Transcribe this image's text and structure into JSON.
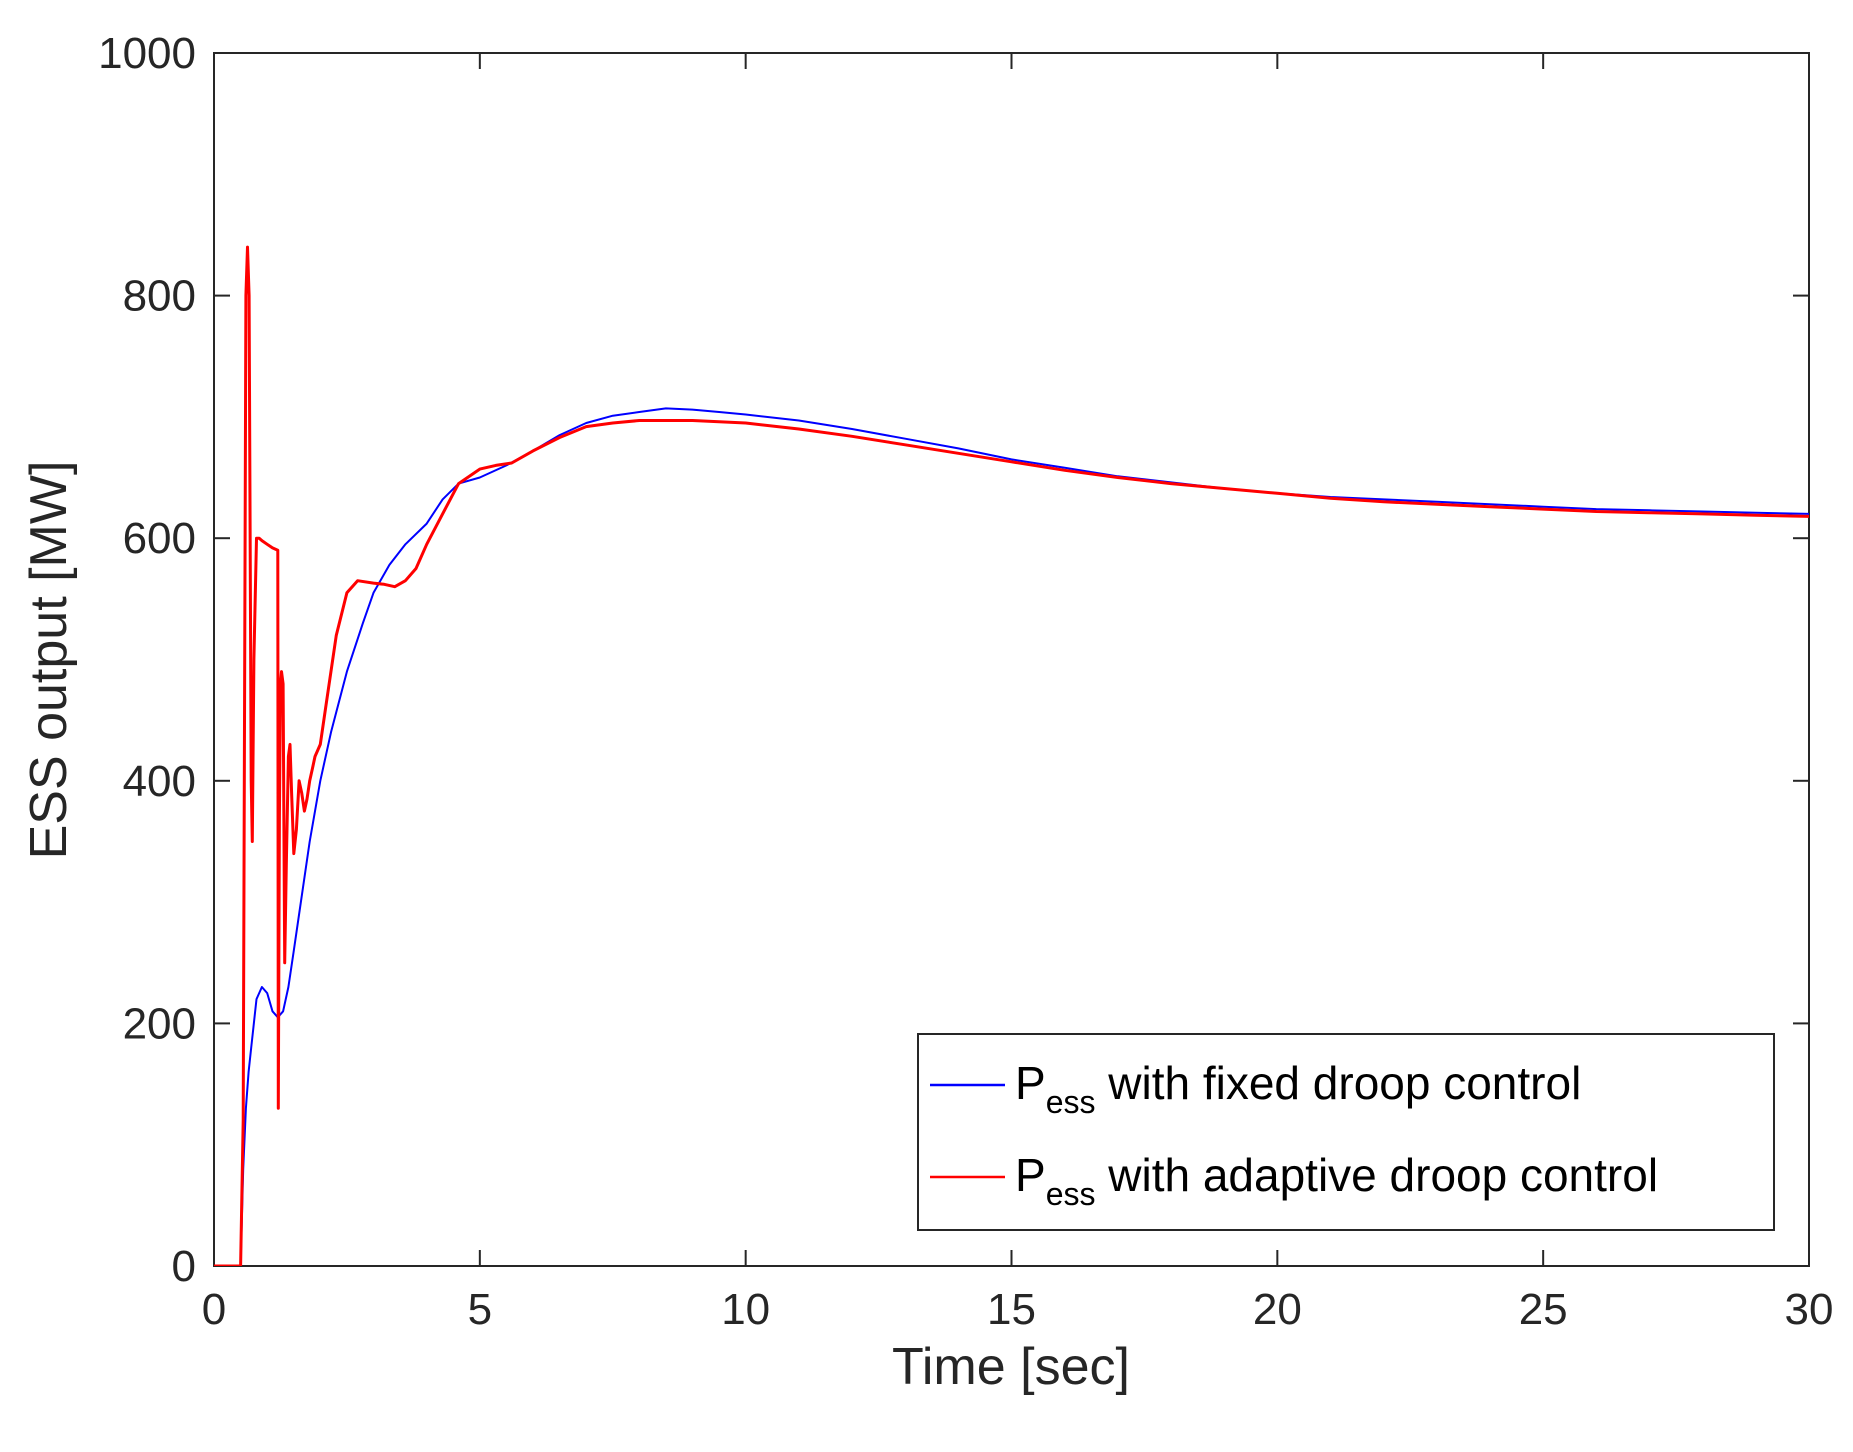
{
  "chart_data": {
    "type": "line",
    "title": "",
    "xlabel": "Time [sec]",
    "ylabel": "ESS output [MW]",
    "xlim": [
      0,
      30
    ],
    "ylim": [
      0,
      1000
    ],
    "xticks": [
      0,
      5,
      10,
      15,
      20,
      25,
      30
    ],
    "yticks": [
      0,
      200,
      400,
      600,
      800,
      1000
    ],
    "xtick_labels": [
      "0",
      "5",
      "10",
      "15",
      "20",
      "25",
      "30"
    ],
    "ytick_labels": [
      "0",
      "200",
      "400",
      "600",
      "800",
      "1000"
    ],
    "grid": false,
    "legend_position": "bottom-right",
    "series": [
      {
        "name": "P_ess with fixed droop control",
        "legend_main": "P",
        "legend_sub": "ess",
        "legend_rest": " with fixed droop control",
        "color": "#0000ff",
        "x": [
          0,
          0.5,
          0.55,
          0.6,
          0.65,
          0.7,
          0.8,
          0.9,
          1.0,
          1.1,
          1.2,
          1.3,
          1.4,
          1.5,
          1.6,
          1.8,
          2.0,
          2.2,
          2.5,
          2.8,
          3.0,
          3.3,
          3.6,
          4.0,
          4.3,
          4.6,
          5.0,
          5.5,
          6.0,
          6.5,
          7.0,
          7.5,
          8.0,
          8.5,
          9.0,
          9.5,
          10.0,
          11.0,
          12.0,
          13.0,
          14.0,
          15.0,
          16.0,
          17.0,
          18.0,
          19.0,
          20.0,
          21.0,
          22.0,
          23.0,
          24.0,
          25.0,
          26.0,
          27.0,
          28.0,
          29.0,
          30.0
        ],
        "y": [
          0,
          0,
          80,
          130,
          160,
          180,
          220,
          230,
          225,
          210,
          205,
          210,
          230,
          260,
          290,
          350,
          400,
          440,
          490,
          530,
          555,
          578,
          595,
          612,
          632,
          645,
          650,
          660,
          672,
          685,
          695,
          701,
          704,
          707,
          706,
          704,
          702,
          697,
          690,
          682,
          674,
          665,
          658,
          651,
          646,
          641,
          637,
          634,
          632,
          630,
          628,
          626,
          624,
          623,
          622,
          621,
          620
        ]
      },
      {
        "name": "P_ess with adaptive droop control",
        "legend_main": "P",
        "legend_sub": "ess",
        "legend_rest": " with adaptive droop control",
        "color": "#ff0000",
        "x": [
          0,
          0.5,
          0.55,
          0.6,
          0.63,
          0.66,
          0.7,
          0.72,
          0.75,
          0.8,
          0.85,
          0.9,
          1.0,
          1.1,
          1.2,
          1.21,
          1.23,
          1.25,
          1.27,
          1.3,
          1.33,
          1.36,
          1.4,
          1.43,
          1.46,
          1.5,
          1.55,
          1.6,
          1.65,
          1.7,
          1.75,
          1.8,
          1.85,
          1.9,
          2.0,
          2.1,
          2.3,
          2.5,
          2.7,
          3.0,
          3.2,
          3.4,
          3.6,
          3.8,
          4.0,
          4.3,
          4.6,
          5.0,
          5.3,
          5.6,
          6.0,
          6.5,
          7.0,
          7.5,
          8.0,
          8.5,
          9.0,
          9.5,
          10.0,
          11.0,
          12.0,
          13.0,
          14.0,
          15.0,
          16.0,
          17.0,
          18.0,
          19.0,
          20.0,
          21.0,
          22.0,
          23.0,
          24.0,
          25.0,
          26.0,
          27.0,
          28.0,
          29.0,
          30.0
        ],
        "y": [
          0,
          0,
          120,
          800,
          840,
          800,
          400,
          350,
          500,
          600,
          600,
          598,
          595,
          592,
          590,
          130,
          370,
          480,
          490,
          480,
          250,
          330,
          420,
          430,
          390,
          340,
          360,
          400,
          390,
          375,
          385,
          400,
          410,
          420,
          430,
          460,
          520,
          555,
          565,
          563,
          562,
          560,
          565,
          575,
          595,
          620,
          645,
          657,
          660,
          662,
          672,
          683,
          692,
          695,
          697,
          697,
          697,
          696,
          695,
          690,
          684,
          677,
          670,
          663,
          656,
          650,
          645,
          641,
          637,
          633,
          630,
          628,
          626,
          624,
          622,
          621,
          620,
          619,
          618
        ]
      }
    ]
  }
}
